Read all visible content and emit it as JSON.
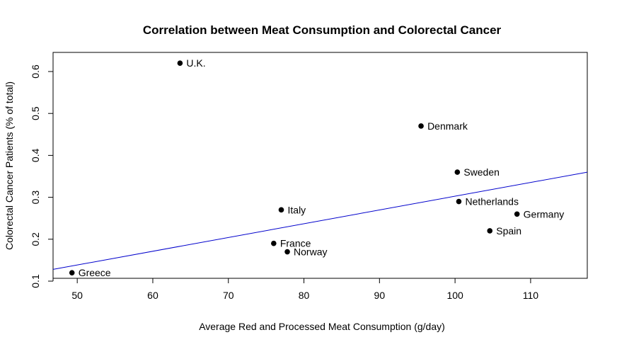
{
  "chart_data": {
    "type": "scatter",
    "title": "Correlation between Meat Consumption and Colorectal Cancer",
    "xlabel": "Average Red and Processed Meat Consumption (g/day)",
    "ylabel": "Colorectal Cancer Patients (% of total)",
    "xlim": [
      46.8,
      117.5
    ],
    "ylim": [
      0.1,
      0.6
    ],
    "xticks": [
      50,
      60,
      70,
      80,
      90,
      100,
      110
    ],
    "yticks": [
      0.1,
      0.2,
      0.3,
      0.4,
      0.5,
      0.6
    ],
    "grid": false,
    "legend": "none",
    "point_color": "#000000",
    "trend_color": "#0000cc",
    "points": [
      {
        "label": "U.K.",
        "x": 63.6,
        "y": 0.62
      },
      {
        "label": "Denmark",
        "x": 95.5,
        "y": 0.47
      },
      {
        "label": "Sweden",
        "x": 100.3,
        "y": 0.36
      },
      {
        "label": "Netherlands",
        "x": 100.5,
        "y": 0.29
      },
      {
        "label": "Germany",
        "x": 108.2,
        "y": 0.26
      },
      {
        "label": "Spain",
        "x": 104.6,
        "y": 0.22
      },
      {
        "label": "Italy",
        "x": 77.0,
        "y": 0.27
      },
      {
        "label": "France",
        "x": 76.0,
        "y": 0.19
      },
      {
        "label": "Norway",
        "x": 77.8,
        "y": 0.17
      },
      {
        "label": "Greece",
        "x": 49.3,
        "y": 0.12
      }
    ],
    "trendline": {
      "x": [
        46.8,
        117.5
      ],
      "y": [
        0.128,
        0.36
      ]
    }
  }
}
